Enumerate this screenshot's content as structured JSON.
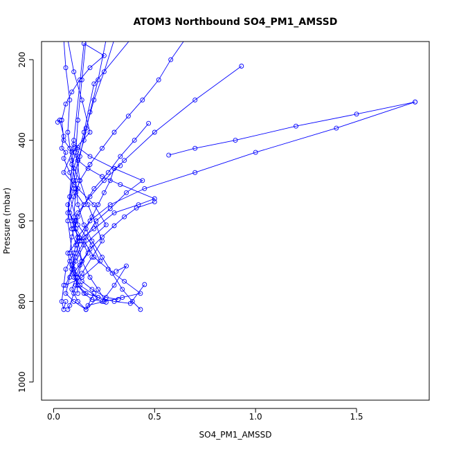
{
  "chart_data": {
    "type": "line",
    "title": "ATOM3 Northbound SO4_PM1_AMSSD",
    "xlabel": "SO4_PM1_AMSSD",
    "ylabel": "Pressure (mbar)",
    "xlim": [
      -0.06,
      1.86
    ],
    "ylim": [
      1045,
      155
    ],
    "y_reversed": true,
    "x_ticks": [
      0.0,
      0.5,
      1.0,
      1.5
    ],
    "x_tick_labels": [
      "0.0",
      "0.5",
      "1.0",
      "1.5"
    ],
    "y_ticks": [
      200,
      400,
      600,
      800,
      1000
    ],
    "y_tick_labels": [
      "200",
      "400",
      "600",
      "800",
      "1000"
    ],
    "grid": false,
    "marker": "open-circle",
    "series_color": "#0000ff",
    "series": [
      {
        "x": [
          0.07,
          0.1,
          0.14,
          0.18,
          0.09,
          0.05,
          0.12,
          0.2,
          0.26,
          0.15,
          0.11,
          0.08,
          0.06,
          0.1,
          0.16,
          0.22,
          0.13,
          0.09,
          0.07,
          0.12,
          0.2,
          0.3,
          0.42,
          0.5,
          0.33,
          0.24,
          0.17,
          0.12,
          0.08,
          0.05,
          0.04,
          0.06,
          0.09,
          0.13,
          0.18,
          0.25,
          0.15,
          0.1,
          0.07,
          0.12
        ],
        "y": [
          150,
          230,
          300,
          380,
          430,
          480,
          520,
          560,
          610,
          660,
          700,
          740,
          780,
          800,
          820,
          790,
          760,
          720,
          680,
          650,
          620,
          580,
          560,
          545,
          510,
          490,
          470,
          450,
          420,
          400,
          350,
          310,
          280,
          250,
          220,
          190,
          160,
          400,
          600,
          780
        ]
      },
      {
        "x": [
          0.38,
          0.2,
          0.15,
          0.1,
          0.08,
          0.12,
          0.19,
          0.23,
          0.14,
          0.06,
          0.09,
          0.11,
          0.16,
          0.21,
          0.28,
          0.36,
          0.44,
          0.3,
          0.18,
          0.1
        ],
        "y": [
          150,
          260,
          380,
          470,
          540,
          610,
          660,
          700,
          740,
          760,
          720,
          690,
          640,
          600,
          570,
          530,
          500,
          470,
          440,
          410
        ]
      },
      {
        "x": [
          0.65,
          0.58,
          0.52,
          0.44,
          0.37,
          0.3,
          0.24,
          0.18,
          0.13,
          0.1,
          0.08,
          0.11,
          0.15,
          0.2,
          0.27,
          0.35,
          0.43,
          0.34,
          0.25,
          0.17
        ],
        "y": [
          150,
          200,
          250,
          300,
          340,
          380,
          420,
          460,
          500,
          540,
          580,
          620,
          650,
          690,
          720,
          750,
          780,
          790,
          800,
          810
        ]
      },
      {
        "x": [
          0.02,
          0.03,
          0.05,
          0.04,
          0.06,
          0.05,
          0.08,
          0.1,
          0.07,
          0.09,
          0.12,
          0.1,
          0.08,
          0.06,
          0.05,
          0.04,
          0.05,
          0.06
        ],
        "y": [
          355,
          350,
          390,
          420,
          430,
          445,
          480,
          520,
          560,
          600,
          640,
          680,
          700,
          720,
          760,
          800,
          820,
          800
        ]
      },
      {
        "x": [
          0.93,
          0.7,
          0.5,
          0.35,
          0.25,
          0.18,
          0.12,
          0.09
        ],
        "y": [
          216,
          300,
          380,
          450,
          500,
          540,
          580,
          620
        ]
      },
      {
        "x": [
          1.79,
          1.5,
          1.2,
          0.9,
          0.7,
          0.57
        ],
        "y": [
          305,
          335,
          365,
          400,
          420,
          437
        ]
      },
      {
        "x": [
          1.79,
          1.4,
          1.0,
          0.7,
          0.45,
          0.28,
          0.18,
          0.12
        ],
        "y": [
          305,
          370,
          430,
          480,
          520,
          560,
          600,
          640
        ]
      },
      {
        "x": [
          0.47,
          0.4,
          0.33,
          0.27,
          0.2,
          0.15,
          0.11,
          0.09,
          0.08,
          0.1,
          0.14,
          0.19,
          0.26,
          0.32
        ],
        "y": [
          358,
          400,
          440,
          480,
          520,
          560,
          600,
          640,
          680,
          720,
          750,
          770,
          790,
          795
        ]
      },
      {
        "x": [
          0.5,
          0.41,
          0.35,
          0.3,
          0.24,
          0.18,
          0.14,
          0.1,
          0.12,
          0.16,
          0.22,
          0.3,
          0.38,
          0.45
        ],
        "y": [
          553,
          568,
          590,
          612,
          640,
          670,
          700,
          730,
          760,
          780,
          790,
          800,
          805,
          758
        ]
      },
      {
        "x": [
          0.1,
          0.12,
          0.09,
          0.13,
          0.11,
          0.15,
          0.12,
          0.1,
          0.14,
          0.17,
          0.13,
          0.11,
          0.09,
          0.12,
          0.16,
          0.2
        ],
        "y": [
          420,
          418,
          460,
          500,
          530,
          560,
          590,
          620,
          650,
          680,
          710,
          740,
          770,
          800,
          820,
          780
        ]
      },
      {
        "x": [
          0.33,
          0.3,
          0.28,
          0.25,
          0.22,
          0.19,
          0.16,
          0.13,
          0.11,
          0.09,
          0.1,
          0.12,
          0.15,
          0.19,
          0.24,
          0.3,
          0.36,
          0.31
        ],
        "y": [
          463,
          470,
          500,
          530,
          560,
          590,
          620,
          650,
          680,
          710,
          740,
          760,
          780,
          795,
          800,
          760,
          712,
          725
        ]
      },
      {
        "x": [
          0.26,
          0.22,
          0.18,
          0.15,
          0.12,
          0.1,
          0.08,
          0.07,
          0.09,
          0.11,
          0.14,
          0.18,
          0.22,
          0.26
        ],
        "y": [
          150,
          250,
          330,
          400,
          450,
          500,
          540,
          580,
          620,
          660,
          700,
          740,
          770,
          802
        ]
      },
      {
        "x": [
          0.05,
          0.06,
          0.08,
          0.07,
          0.09,
          0.11,
          0.1,
          0.12,
          0.14,
          0.12,
          0.1,
          0.08,
          0.07
        ],
        "y": [
          150,
          220,
          300,
          380,
          450,
          520,
          590,
          650,
          700,
          740,
          780,
          810,
          820
        ]
      },
      {
        "x": [
          0.3,
          0.25,
          0.2,
          0.16,
          0.13,
          0.11,
          0.12,
          0.15,
          0.19,
          0.24,
          0.29,
          0.34,
          0.39,
          0.43
        ],
        "y": [
          150,
          230,
          300,
          370,
          440,
          500,
          560,
          610,
          650,
          690,
          730,
          770,
          800,
          820
        ]
      },
      {
        "x": [
          0.16,
          0.14,
          0.12,
          0.11,
          0.13,
          0.17,
          0.21,
          0.24,
          0.19,
          0.14,
          0.11
        ],
        "y": [
          150,
          250,
          350,
          430,
          500,
          560,
          610,
          650,
          690,
          730,
          760
        ]
      }
    ]
  }
}
